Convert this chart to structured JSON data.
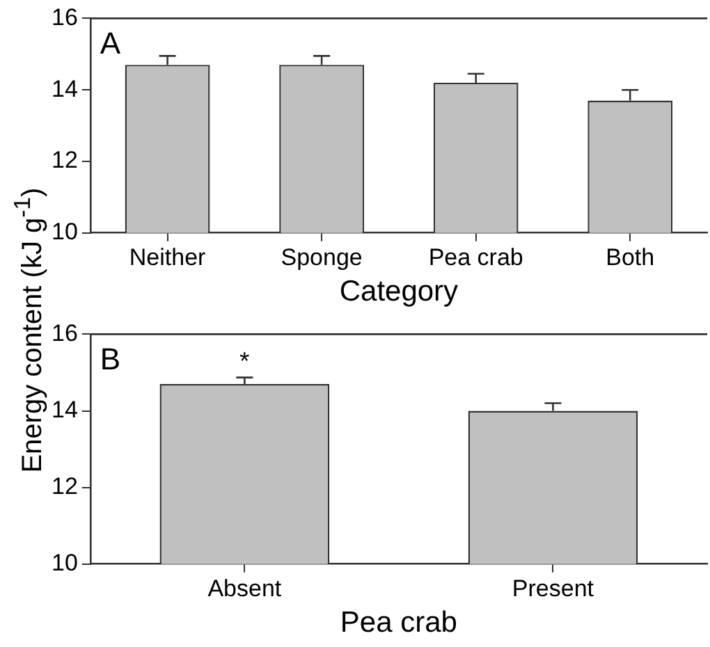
{
  "chart_data": [
    {
      "type": "bar",
      "xlabel": "Category",
      "ylabel": "Energy content (kJ g$^{-1}$)",
      "categories": [
        "Neither",
        "Sponge",
        "Pea crab",
        "Both"
      ],
      "values": [
        14.7,
        14.7,
        14.2,
        13.7
      ],
      "errors": [
        0.25,
        0.25,
        0.25,
        0.3
      ],
      "color": "#c0c0c0",
      "ylim": [
        10,
        16
      ],
      "yticks": [
        10,
        12,
        14,
        16
      ],
      "grid": false,
      "legend": false,
      "annotations": [
        "A"
      ]
    },
    {
      "type": "bar",
      "xlabel": "Pea crab",
      "categories": [
        "Absent",
        "Present"
      ],
      "values": [
        14.7,
        14.0
      ],
      "errors": [
        0.17,
        0.2
      ],
      "color": "#c0c0c0",
      "ylim": [
        10,
        16
      ],
      "yticks": [
        10,
        12,
        14,
        16
      ],
      "grid": false,
      "legend": false,
      "annotations": [
        "B",
        "*"
      ]
    }
  ]
}
